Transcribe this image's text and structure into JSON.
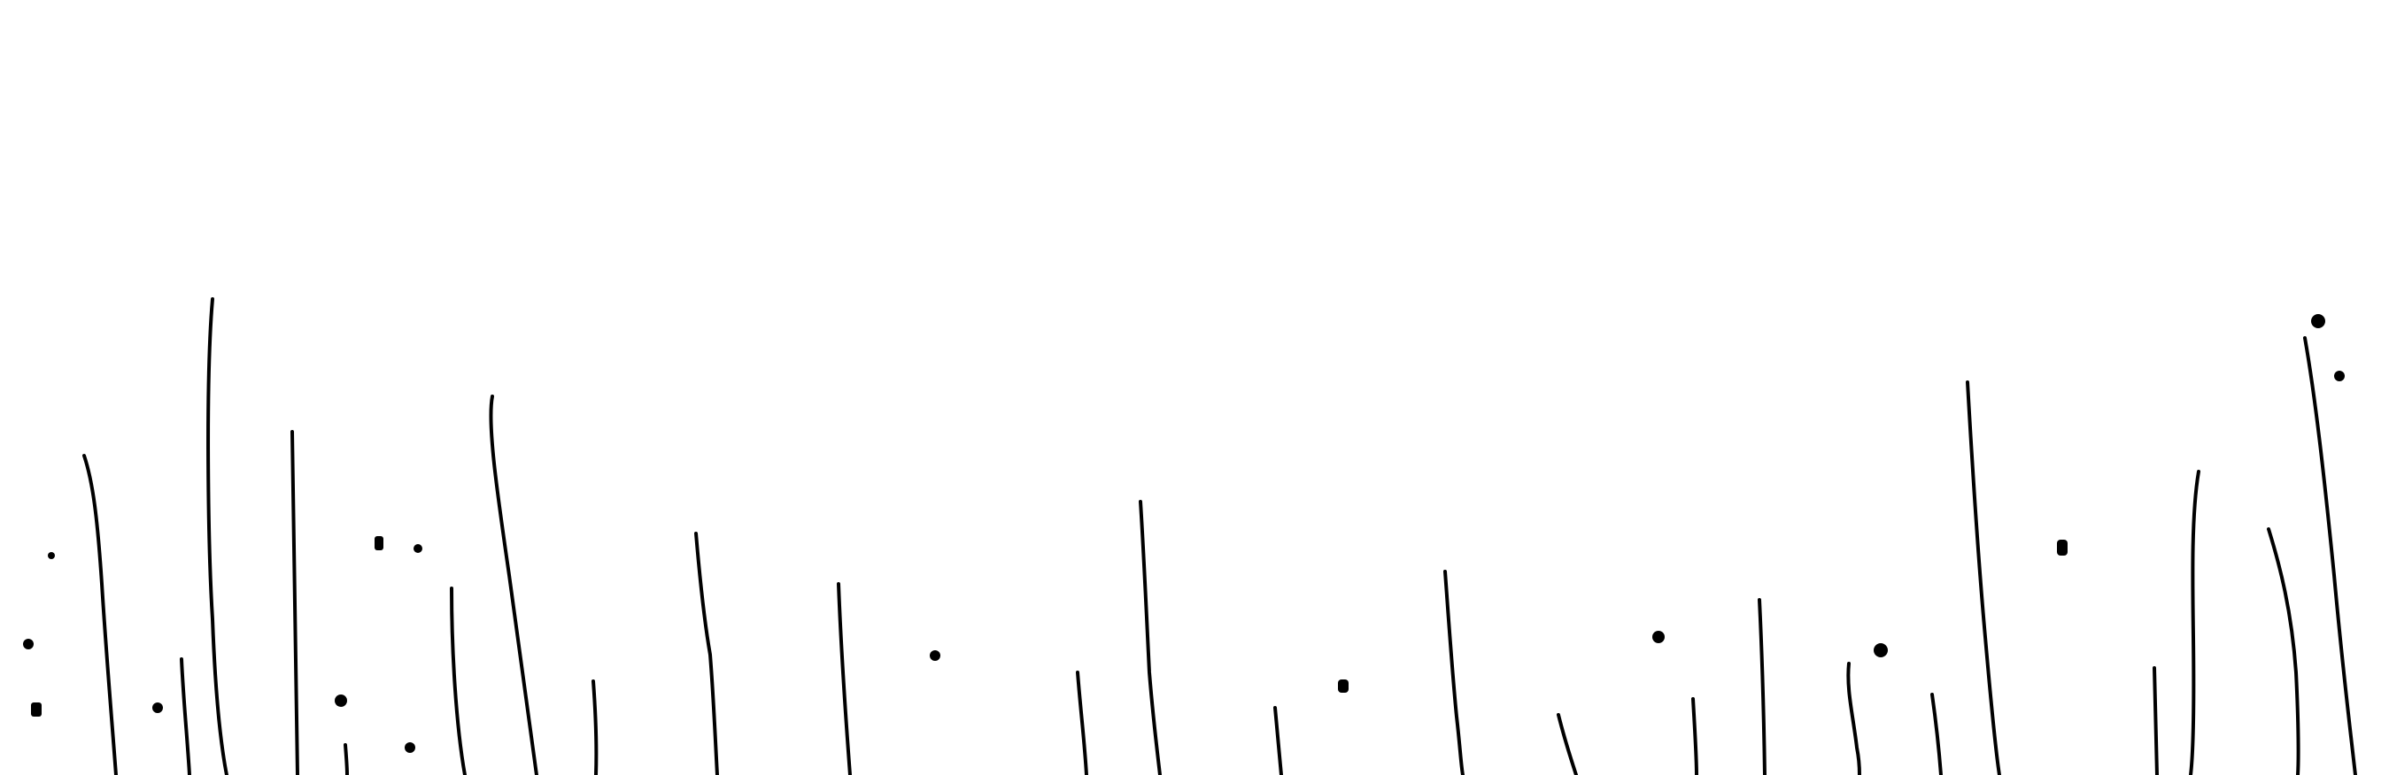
{
  "scene": {
    "description_visible_text": "",
    "background_color": "#ffffff",
    "stroke_color": "#000000"
  }
}
